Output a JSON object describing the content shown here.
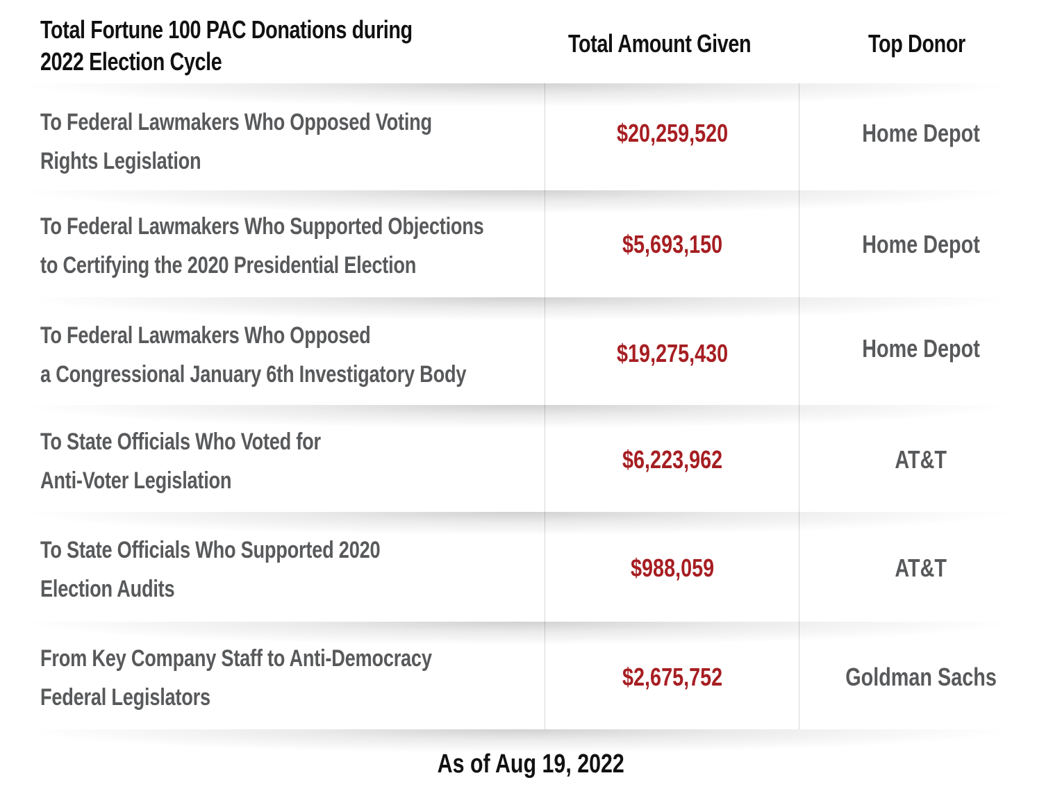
{
  "chart_data": {
    "type": "table",
    "columns": [
      "Total Fortune 100 PAC Donations during 2022 Election Cycle",
      "Total Amount Given",
      "Top Donor"
    ],
    "rows": [
      {
        "label_lines": [
          "To Federal Lawmakers Who Opposed Voting",
          "Rights Legislation"
        ],
        "amount": "$20,259,520",
        "value": 20259520,
        "top_donor": "Home Depot"
      },
      {
        "label_lines": [
          "To Federal Lawmakers Who Supported Objections",
          "to Certifying the 2020 Presidential Election"
        ],
        "amount": "$5,693,150",
        "value": 5693150,
        "top_donor": "Home Depot"
      },
      {
        "label_lines": [
          "To Federal Lawmakers Who Opposed",
          "a Congressional January 6th Investigatory Body"
        ],
        "amount": "$19,275,430",
        "value": 19275430,
        "top_donor": "Home Depot"
      },
      {
        "label_lines": [
          "To State Officials Who Voted for",
          "Anti-Voter Legislation"
        ],
        "amount": "$6,223,962",
        "value": 6223962,
        "top_donor": "AT&T"
      },
      {
        "label_lines": [
          "To State Officials Who Supported 2020",
          "Election Audits"
        ],
        "amount": "$988,059",
        "value": 988059,
        "top_donor": "AT&T"
      },
      {
        "label_lines": [
          "From Key Company Staff to Anti-Democracy",
          "Federal Legislators"
        ],
        "amount": "$2,675,752",
        "value": 2675752,
        "top_donor": "Goldman Sachs"
      }
    ],
    "header_lines": [
      "Total Fortune 100 PAC Donations during",
      "2022 Election Cycle"
    ],
    "footnote": "As of Aug 19, 2022",
    "colors": {
      "amount": "#a61e22",
      "label": "#58595b",
      "header": "#111111"
    }
  }
}
